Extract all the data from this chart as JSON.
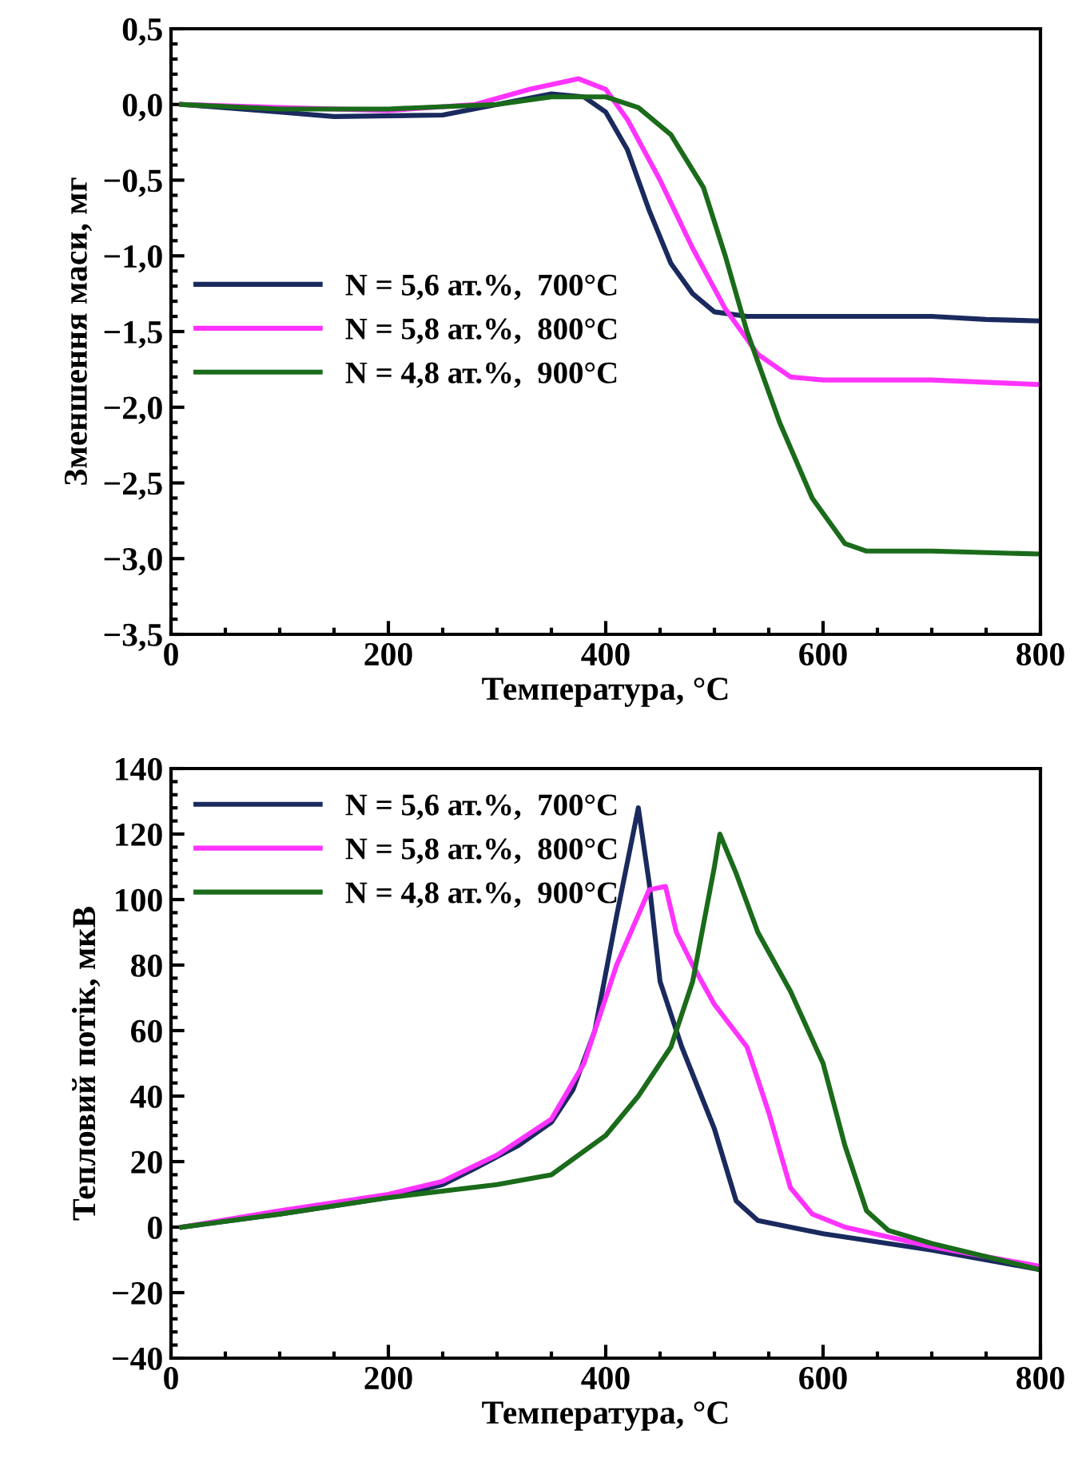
{
  "chart_data": [
    {
      "type": "line",
      "xlabel": "Температура, °C",
      "ylabel": "Зменшення маси, мг",
      "xlim": [
        0,
        800
      ],
      "xticks": [
        0,
        200,
        400,
        600,
        800
      ],
      "ylim": [
        -3.5,
        0.5
      ],
      "yticks": [
        {
          "value": -3.5,
          "label": "−3,5"
        },
        {
          "value": -3.0,
          "label": "−3,0"
        },
        {
          "value": -2.5,
          "label": "−2,5"
        },
        {
          "value": -2.0,
          "label": "−2,0"
        },
        {
          "value": -1.5,
          "label": "−1,5"
        },
        {
          "value": -1.0,
          "label": "−1,0"
        },
        {
          "value": -0.5,
          "label": "−0,5"
        },
        {
          "value": 0.0,
          "label": "0,0"
        },
        {
          "value": 0.5,
          "label": "0,5"
        }
      ],
      "grid": false,
      "legend": "center left",
      "series": [
        {
          "name": "N = 5,6 ат.%,  700°C",
          "color": "#1a2a5e",
          "x": [
            10,
            100,
            150,
            250,
            300,
            350,
            380,
            400,
            420,
            440,
            460,
            480,
            500,
            530,
            600,
            700,
            750,
            800
          ],
          "values": [
            0.0,
            -0.05,
            -0.08,
            -0.07,
            0.0,
            0.07,
            0.05,
            -0.05,
            -0.3,
            -0.7,
            -1.05,
            -1.25,
            -1.37,
            -1.4,
            -1.4,
            -1.4,
            -1.42,
            -1.43
          ]
        },
        {
          "name": "N = 5,8 ат.%,  800°C",
          "color": "#ff33ff",
          "x": [
            10,
            100,
            200,
            280,
            330,
            375,
            400,
            420,
            450,
            480,
            510,
            540,
            570,
            600,
            700,
            800
          ],
          "values": [
            0.0,
            -0.02,
            -0.04,
            0.0,
            0.1,
            0.17,
            0.1,
            -0.1,
            -0.5,
            -0.95,
            -1.35,
            -1.65,
            -1.8,
            -1.82,
            -1.82,
            -1.85
          ]
        },
        {
          "name": "N = 4,8 ат.%,  900°C",
          "color": "#1a6b1a",
          "x": [
            10,
            100,
            200,
            300,
            350,
            400,
            430,
            460,
            490,
            510,
            530,
            560,
            590,
            620,
            640,
            700,
            800
          ],
          "values": [
            0.0,
            -0.03,
            -0.03,
            0.0,
            0.05,
            0.05,
            -0.02,
            -0.2,
            -0.55,
            -1.0,
            -1.5,
            -2.1,
            -2.6,
            -2.9,
            -2.95,
            -2.95,
            -2.97
          ]
        }
      ]
    },
    {
      "type": "line",
      "xlabel": "Температура, °C",
      "ylabel": "Тепловий потік, мкВ",
      "xlim": [
        0,
        800
      ],
      "xticks": [
        0,
        200,
        400,
        600,
        800
      ],
      "ylim": [
        -40,
        140
      ],
      "yticks": [
        {
          "value": -40,
          "label": "−40"
        },
        {
          "value": -20,
          "label": "−20"
        },
        0,
        20,
        40,
        60,
        80,
        100,
        120,
        140
      ],
      "grid": false,
      "legend": "top left",
      "series": [
        {
          "name": "N = 5,6 ат.%,  700°C",
          "color": "#1a2a5e",
          "x": [
            10,
            100,
            200,
            250,
            280,
            320,
            350,
            370,
            390,
            410,
            430,
            440,
            450,
            470,
            500,
            520,
            540,
            600,
            700,
            800
          ],
          "values": [
            0,
            4,
            9,
            13,
            18,
            25,
            32,
            42,
            60,
            95,
            128,
            105,
            75,
            55,
            30,
            8,
            2,
            -2,
            -7,
            -13
          ]
        },
        {
          "name": "N = 5,8 ат.%,  800°C",
          "color": "#ff33ff",
          "x": [
            10,
            100,
            200,
            250,
            300,
            350,
            380,
            410,
            440,
            455,
            465,
            480,
            500,
            530,
            550,
            570,
            590,
            620,
            700,
            800
          ],
          "values": [
            0,
            5,
            10,
            14,
            22,
            33,
            50,
            80,
            103,
            104,
            90,
            80,
            68,
            55,
            35,
            12,
            4,
            0,
            -6,
            -12
          ]
        },
        {
          "name": "N = 4,8 ат.%,  900°C",
          "color": "#1a6b1a",
          "x": [
            10,
            100,
            200,
            300,
            350,
            400,
            430,
            460,
            480,
            500,
            505,
            520,
            540,
            570,
            600,
            620,
            640,
            660,
            700,
            800
          ],
          "values": [
            0,
            4,
            9,
            13,
            16,
            28,
            40,
            55,
            75,
            110,
            120,
            108,
            90,
            72,
            50,
            25,
            5,
            -1,
            -5,
            -13
          ]
        }
      ]
    }
  ]
}
